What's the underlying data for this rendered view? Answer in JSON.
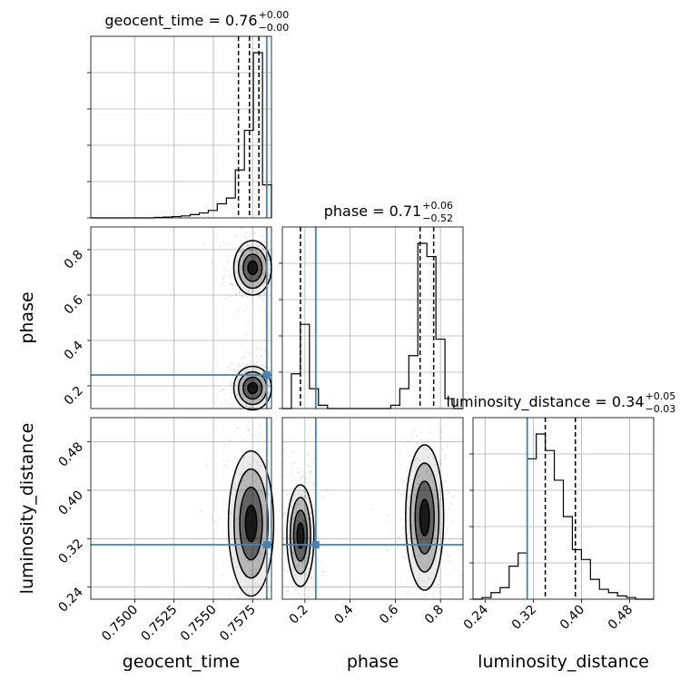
{
  "chart_data": {
    "type": "corner",
    "parameters": [
      "geocent_time",
      "phase",
      "luminosity_distance"
    ],
    "injected": {
      "geocent_time": 0.7584,
      "phase": 0.248,
      "luminosity_distance": 0.31
    },
    "truth_color": "#4682b4",
    "titles": {
      "geocent_time": {
        "name": "geocent_time",
        "median": "0.76",
        "plus": "+0.00",
        "minus": "−0.00"
      },
      "phase": {
        "name": "phase",
        "median": "0.71",
        "plus": "+0.06",
        "minus": "−0.52"
      },
      "luminosity_distance": {
        "name": "luminosity_distance",
        "median": "0.34",
        "plus": "+0.05",
        "minus": "−0.03"
      }
    },
    "axes": {
      "geocent_time": {
        "range": [
          0.7472,
          0.7587
        ],
        "ticks": [
          "0.7500",
          "0.7525",
          "0.7550",
          "0.7575"
        ],
        "tick_values": [
          0.75,
          0.7525,
          0.755,
          0.7575
        ],
        "label": "geocent_time"
      },
      "phase": {
        "range": [
          0.1,
          0.9
        ],
        "ticks": [
          "0.2",
          "0.4",
          "0.6",
          "0.8"
        ],
        "tick_values": [
          0.2,
          0.4,
          0.6,
          0.8
        ],
        "label": "phase"
      },
      "luminosity_distance": {
        "range": [
          0.22,
          0.52
        ],
        "ticks": [
          "0.24",
          "0.32",
          "0.40",
          "0.48"
        ],
        "tick_values": [
          0.24,
          0.32,
          0.4,
          0.48
        ],
        "label": "luminosity_distance"
      }
    },
    "histograms": {
      "geocent_time": {
        "edges": [
          0.7472,
          0.74778,
          0.74835,
          0.74893,
          0.7495,
          0.75008,
          0.75065,
          0.75123,
          0.7518,
          0.75238,
          0.75295,
          0.75353,
          0.7541,
          0.75468,
          0.75525,
          0.75583,
          0.7564,
          0.75698,
          0.75755,
          0.75813,
          0.7587
        ],
        "counts": [
          0.0,
          0.0,
          0.0,
          0.0,
          0.0,
          0.0,
          0.0,
          0.003,
          0.005,
          0.008,
          0.012,
          0.02,
          0.03,
          0.045,
          0.085,
          0.12,
          0.29,
          0.53,
          1.0,
          0.2
        ],
        "quantiles": [
          0.7566,
          0.7573,
          0.7579
        ]
      },
      "phase": {
        "edges": [
          0.1,
          0.14,
          0.18,
          0.22,
          0.26,
          0.3,
          0.34,
          0.38,
          0.42,
          0.46,
          0.5,
          0.54,
          0.58,
          0.62,
          0.66,
          0.7,
          0.74,
          0.78,
          0.82,
          0.86,
          0.9
        ],
        "counts": [
          0.0,
          0.21,
          0.51,
          0.12,
          0.02,
          0.0,
          0.0,
          0.0,
          0.0,
          0.0,
          0.0,
          0.0,
          0.02,
          0.12,
          0.32,
          1.0,
          0.92,
          0.42,
          0.06,
          0.0
        ],
        "quantiles": [
          0.18,
          0.71,
          0.77
        ]
      },
      "luminosity_distance": {
        "edges": [
          0.22,
          0.235,
          0.25,
          0.265,
          0.28,
          0.295,
          0.31,
          0.325,
          0.34,
          0.355,
          0.37,
          0.385,
          0.4,
          0.415,
          0.43,
          0.445,
          0.46,
          0.475,
          0.49,
          0.505,
          0.52
        ],
        "counts": [
          0.0,
          0.01,
          0.04,
          0.07,
          0.2,
          0.28,
          0.85,
          1.0,
          0.9,
          0.72,
          0.5,
          0.3,
          0.24,
          0.12,
          0.06,
          0.04,
          0.02,
          0.01,
          0.0,
          0.0
        ],
        "quantiles": [
          0.31,
          0.34,
          0.39
        ]
      }
    },
    "pairs": [
      {
        "x": "geocent_time",
        "y": "phase",
        "clusters": [
          {
            "cx": 0.7575,
            "cy": 0.72,
            "sx": 0.0005,
            "sy": 0.05
          },
          {
            "cx": 0.7575,
            "cy": 0.19,
            "sx": 0.0005,
            "sy": 0.04
          }
        ]
      },
      {
        "x": "geocent_time",
        "y": "luminosity_distance",
        "clusters": [
          {
            "cx": 0.7574,
            "cy": 0.345,
            "sx": 0.0006,
            "sy": 0.05
          }
        ]
      },
      {
        "x": "phase",
        "y": "luminosity_distance",
        "clusters": [
          {
            "cx": 0.18,
            "cy": 0.325,
            "sx": 0.025,
            "sy": 0.035
          },
          {
            "cx": 0.73,
            "cy": 0.355,
            "sx": 0.035,
            "sy": 0.05
          }
        ]
      }
    ],
    "grid": true
  }
}
